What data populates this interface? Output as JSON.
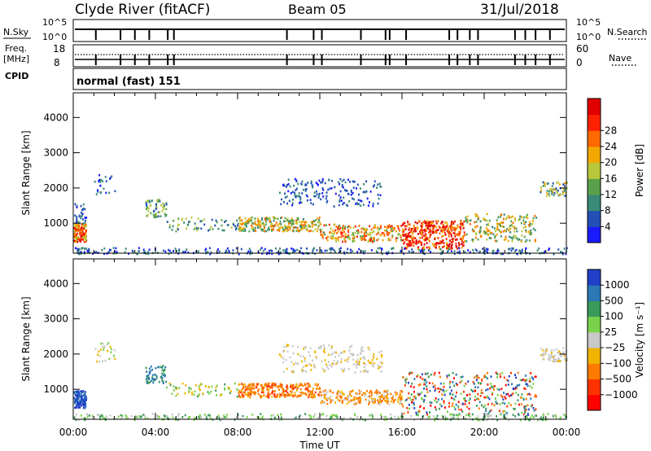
{
  "header": {
    "title": "Clyde River (fitACF)",
    "beam": "Beam 05",
    "date": "31/Jul/2018"
  },
  "aux_panels": {
    "nsky": {
      "label": "N.Sky",
      "ticks": [
        "10^5",
        "10^0"
      ]
    },
    "nsearch": {
      "label": "N.Search",
      "ticks": [
        "10^5",
        "10^0"
      ]
    },
    "freq": {
      "label_1": "Freq.",
      "label_2": "[MHz]",
      "ticks": [
        "18",
        "8"
      ]
    },
    "nave": {
      "label": "Nave",
      "ticks": [
        "60",
        "0"
      ]
    },
    "cpid": {
      "label": "CPID",
      "value": "normal (fast) 151"
    }
  },
  "chart_data": [
    {
      "type": "heatmap",
      "quantity": "Power",
      "xlabel": "",
      "ylabel": "Slant Range [km]",
      "x_ticks": [],
      "y_ticks": [
        "1000",
        "2000",
        "3000",
        "4000"
      ],
      "colorbar_label": "Power [dB]",
      "colorbar_ticks": [
        "4",
        "8",
        "12",
        "16",
        "20",
        "24",
        "28"
      ],
      "colorbar_colors": [
        "#1a1aff",
        "#2250b4",
        "#3a8a78",
        "#5aa04a",
        "#b8c83a",
        "#f2a800",
        "#ff6a00",
        "#ff2200",
        "#e00000"
      ],
      "features": [
        {
          "t0": 0.0,
          "t1": 0.6,
          "r0": 500,
          "r1": 1000,
          "value": "16-28"
        },
        {
          "t0": 9.0,
          "t1": 11.5,
          "r0": 800,
          "r1": 1200,
          "value": "12-24"
        },
        {
          "t0": 13.5,
          "t1": 19.0,
          "r0": 300,
          "r1": 1000,
          "value": "20-32"
        },
        {
          "t0": 10.0,
          "t1": 15.0,
          "r0": 1500,
          "r1": 2300,
          "value": "4-12"
        },
        {
          "t0": 22.7,
          "t1": 24.0,
          "r0": 1800,
          "r1": 2200,
          "value": "8-20"
        }
      ]
    },
    {
      "type": "heatmap",
      "quantity": "Velocity",
      "xlabel": "Time UT",
      "ylabel": "Slant Range [km]",
      "x_ticks": [
        "00:00",
        "04:00",
        "08:00",
        "12:00",
        "16:00",
        "20:00",
        "00:00"
      ],
      "y_ticks": [
        "1000",
        "2000",
        "3000",
        "4000"
      ],
      "colorbar_label": "Velocity [m s⁻¹]",
      "colorbar_ticks": [
        "1000",
        "500",
        "100",
        "25",
        "−25",
        "−100",
        "−500",
        "−1000"
      ],
      "colorbar_colors": [
        "#2040c8",
        "#2a78b4",
        "#3a9a5a",
        "#7ad24a",
        "#c8c8c8",
        "#f0b400",
        "#ff7a00",
        "#ff3300",
        "#ff0000"
      ],
      "features": [
        {
          "t0": 0.0,
          "t1": 0.6,
          "r0": 500,
          "r1": 1000,
          "value": "100-1000"
        },
        {
          "t0": 9.0,
          "t1": 15.0,
          "r0": 700,
          "r1": 1100,
          "value": "-500 to -100"
        },
        {
          "t0": 10.0,
          "t1": 15.0,
          "r0": 1500,
          "r1": 2300,
          "value": "-25 to 25"
        },
        {
          "t0": 16.0,
          "t1": 22.5,
          "r0": 300,
          "r1": 1500,
          "value": "mixed"
        }
      ]
    }
  ]
}
